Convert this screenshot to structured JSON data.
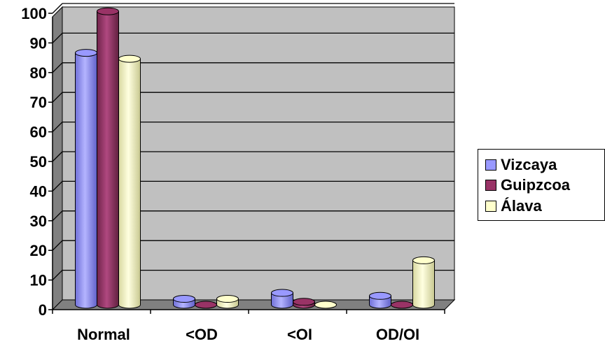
{
  "chart_data": {
    "type": "bar",
    "title": "",
    "xlabel": "",
    "ylabel": "",
    "ylim": [
      0,
      100
    ],
    "yticks": [
      0,
      10,
      20,
      30,
      40,
      50,
      60,
      70,
      80,
      90,
      100
    ],
    "categories": [
      "Normal",
      "<OD",
      "<OI",
      "OD/OI"
    ],
    "series": [
      {
        "name": "Vizcaya",
        "color": "#9999ff",
        "values": [
          85,
          2,
          4,
          3
        ]
      },
      {
        "name": "Guipzcoa",
        "color": "#993366",
        "values": [
          99,
          0,
          1,
          0
        ]
      },
      {
        "name": "Álava",
        "color": "#ffffcc",
        "values": [
          83,
          2,
          0,
          15
        ]
      }
    ],
    "grid": true,
    "style": "3d-cylinder",
    "plot_background": "#c0c0c0",
    "legend_position": "right"
  }
}
